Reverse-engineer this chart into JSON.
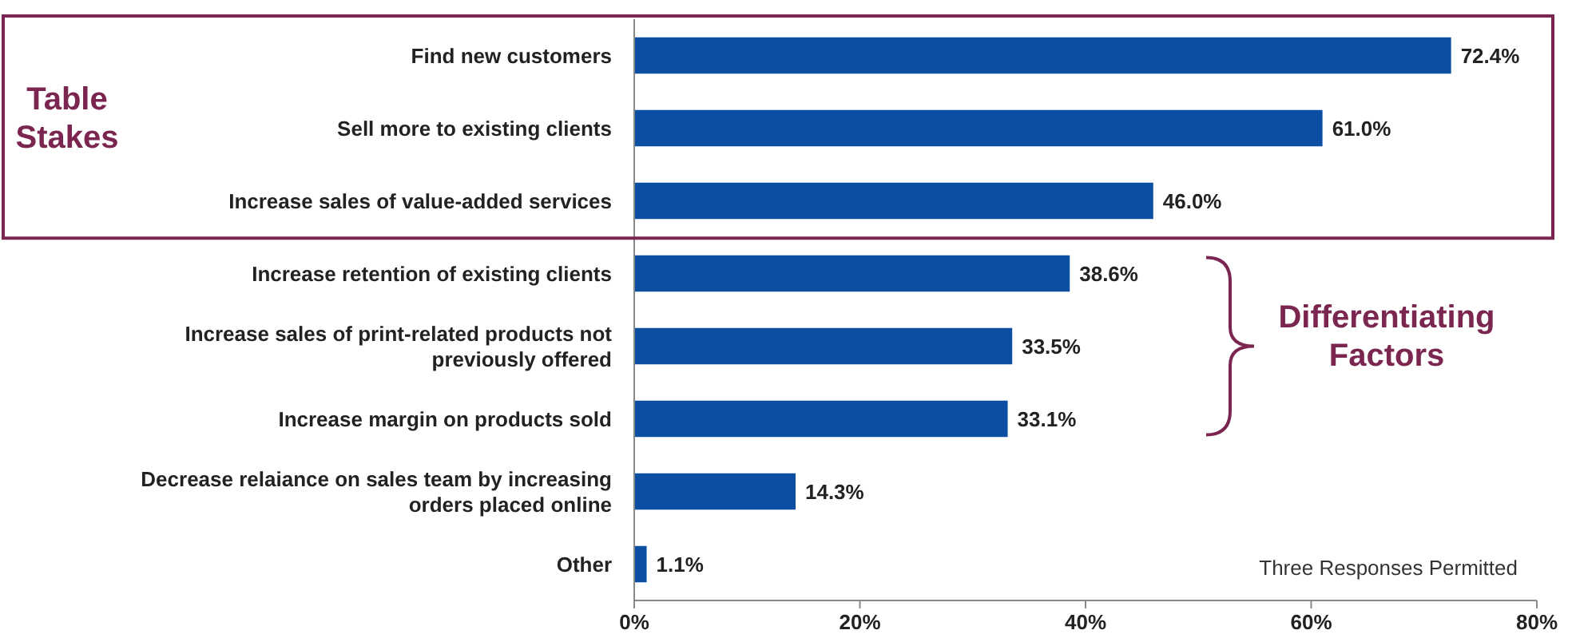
{
  "chart_data": {
    "type": "bar",
    "orientation": "horizontal",
    "categories": [
      "Find new customers",
      "Sell more to existing clients",
      "Increase sales of value-added services",
      "Increase retention of existing clients",
      "Increase sales of print-related products not previously offered",
      "Increase margin on products sold",
      "Decrease relaiance on sales team by increasing orders placed online",
      "Other"
    ],
    "values": [
      72.4,
      61.0,
      46.0,
      38.6,
      33.5,
      33.1,
      14.3,
      1.1
    ],
    "value_labels": [
      "72.4%",
      "61.0%",
      "46.0%",
      "38.6%",
      "33.5%",
      "33.1%",
      "14.3%",
      "1.1%"
    ],
    "color": "#0b4ea2",
    "xlim": [
      0,
      80
    ],
    "xticks": [
      {
        "value": 0,
        "label": "0%"
      },
      {
        "value": 20,
        "label": "20%"
      },
      {
        "value": 40,
        "label": "40%"
      },
      {
        "value": 60,
        "label": "60%"
      },
      {
        "value": 80,
        "label": "80%"
      }
    ],
    "grid": false,
    "annotations": [
      "Table Stakes",
      "Differentiating Factors",
      "Three Responses Permitted"
    ]
  }
}
